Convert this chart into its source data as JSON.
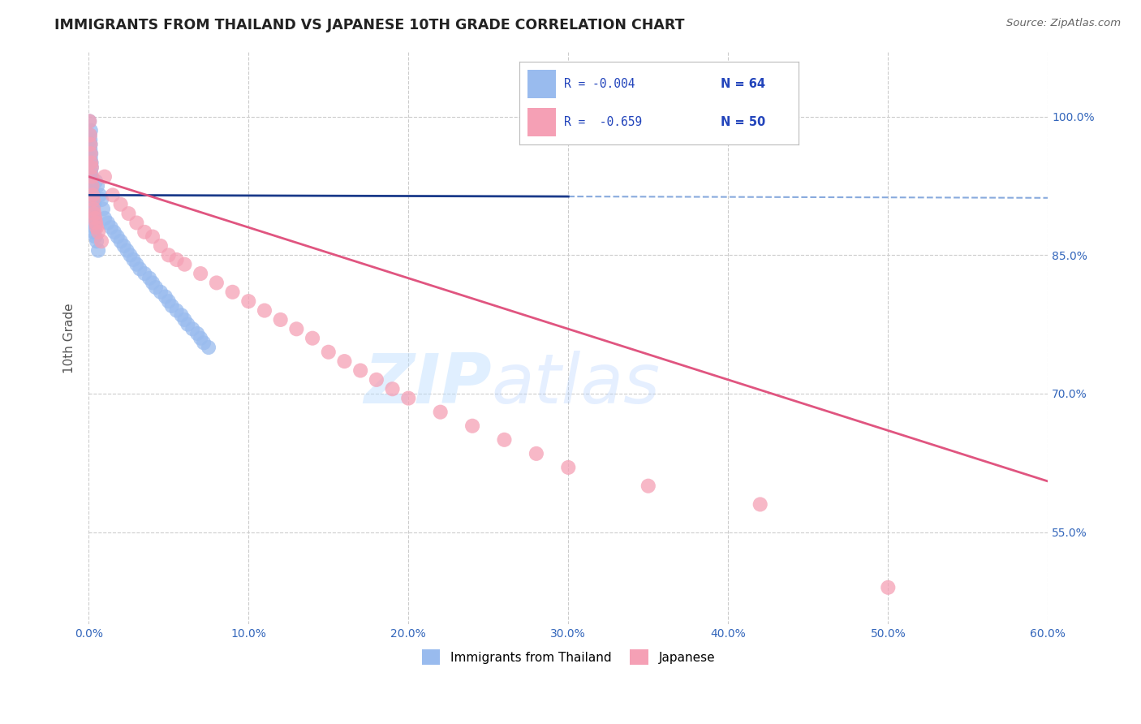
{
  "title": "IMMIGRANTS FROM THAILAND VS JAPANESE 10TH GRADE CORRELATION CHART",
  "source": "Source: ZipAtlas.com",
  "ylabel": "10th Grade",
  "x_tick_labels": [
    "0.0%",
    "10.0%",
    "20.0%",
    "30.0%",
    "40.0%",
    "50.0%",
    "60.0%"
  ],
  "x_tick_values": [
    0.0,
    10.0,
    20.0,
    30.0,
    40.0,
    50.0,
    60.0
  ],
  "y_tick_labels": [
    "55.0%",
    "70.0%",
    "85.0%",
    "100.0%"
  ],
  "y_tick_values": [
    55.0,
    70.0,
    85.0,
    100.0
  ],
  "xlim": [
    0.0,
    60.0
  ],
  "ylim": [
    45.0,
    107.0
  ],
  "legend_labels": [
    "Immigrants from Thailand",
    "Japanese"
  ],
  "blue_color": "#99BBEE",
  "pink_color": "#F5A0B5",
  "blue_line_color": "#1A3A8A",
  "blue_dash_color": "#88AADD",
  "pink_line_color": "#E05580",
  "grid_color": "#CCCCCC",
  "background_color": "#FFFFFF",
  "watermark_zip": "ZIP",
  "watermark_atlas": "atlas",
  "blue_R": -0.004,
  "pink_R": -0.659,
  "blue_N": 64,
  "pink_N": 50,
  "blue_trend_y0": 91.5,
  "blue_trend_y1": 91.2,
  "pink_trend_y0": 93.5,
  "pink_trend_y1": 60.5,
  "blue_dots_x": [
    0.05,
    0.08,
    0.1,
    0.1,
    0.12,
    0.12,
    0.13,
    0.14,
    0.15,
    0.16,
    0.17,
    0.18,
    0.18,
    0.2,
    0.2,
    0.22,
    0.22,
    0.25,
    0.25,
    0.28,
    0.28,
    0.3,
    0.3,
    0.32,
    0.35,
    0.38,
    0.4,
    0.42,
    0.45,
    0.5,
    0.55,
    0.6,
    0.7,
    0.8,
    0.9,
    1.0,
    1.2,
    1.4,
    1.6,
    1.8,
    2.0,
    2.2,
    2.4,
    2.6,
    2.8,
    3.0,
    3.2,
    3.5,
    3.8,
    4.0,
    4.2,
    4.5,
    4.8,
    5.0,
    5.2,
    5.5,
    5.8,
    6.0,
    6.2,
    6.5,
    6.8,
    7.0,
    7.2,
    7.5
  ],
  "blue_dots_y": [
    99.5,
    98.0,
    97.5,
    96.5,
    95.5,
    97.0,
    98.5,
    94.0,
    96.0,
    93.5,
    95.0,
    92.5,
    94.5,
    91.5,
    93.0,
    90.5,
    92.0,
    91.0,
    89.5,
    90.0,
    88.5,
    91.5,
    89.0,
    87.5,
    90.5,
    89.0,
    88.0,
    87.0,
    93.0,
    86.5,
    92.5,
    85.5,
    91.5,
    91.0,
    90.0,
    89.0,
    88.5,
    88.0,
    87.5,
    87.0,
    86.5,
    86.0,
    85.5,
    85.0,
    84.5,
    84.0,
    83.5,
    83.0,
    82.5,
    82.0,
    81.5,
    81.0,
    80.5,
    80.0,
    79.5,
    79.0,
    78.5,
    78.0,
    77.5,
    77.0,
    76.5,
    76.0,
    75.5,
    75.0
  ],
  "pink_dots_x": [
    0.05,
    0.08,
    0.1,
    0.12,
    0.15,
    0.18,
    0.2,
    0.22,
    0.25,
    0.28,
    0.3,
    0.35,
    0.4,
    0.45,
    0.5,
    0.6,
    0.8,
    1.0,
    1.5,
    2.0,
    2.5,
    3.0,
    3.5,
    4.0,
    4.5,
    5.0,
    5.5,
    6.0,
    7.0,
    8.0,
    9.0,
    10.0,
    11.0,
    12.0,
    13.0,
    14.0,
    15.0,
    16.0,
    17.0,
    18.0,
    19.0,
    20.0,
    22.0,
    24.0,
    26.0,
    28.0,
    30.0,
    35.0,
    42.0,
    50.0
  ],
  "pink_dots_y": [
    99.5,
    98.0,
    97.0,
    96.0,
    95.0,
    94.5,
    93.5,
    92.5,
    91.5,
    91.0,
    90.0,
    89.5,
    89.0,
    88.5,
    88.0,
    87.5,
    86.5,
    93.5,
    91.5,
    90.5,
    89.5,
    88.5,
    87.5,
    87.0,
    86.0,
    85.0,
    84.5,
    84.0,
    83.0,
    82.0,
    81.0,
    80.0,
    79.0,
    78.0,
    77.0,
    76.0,
    74.5,
    73.5,
    72.5,
    71.5,
    70.5,
    69.5,
    68.0,
    66.5,
    65.0,
    63.5,
    62.0,
    60.0,
    58.0,
    49.0
  ]
}
